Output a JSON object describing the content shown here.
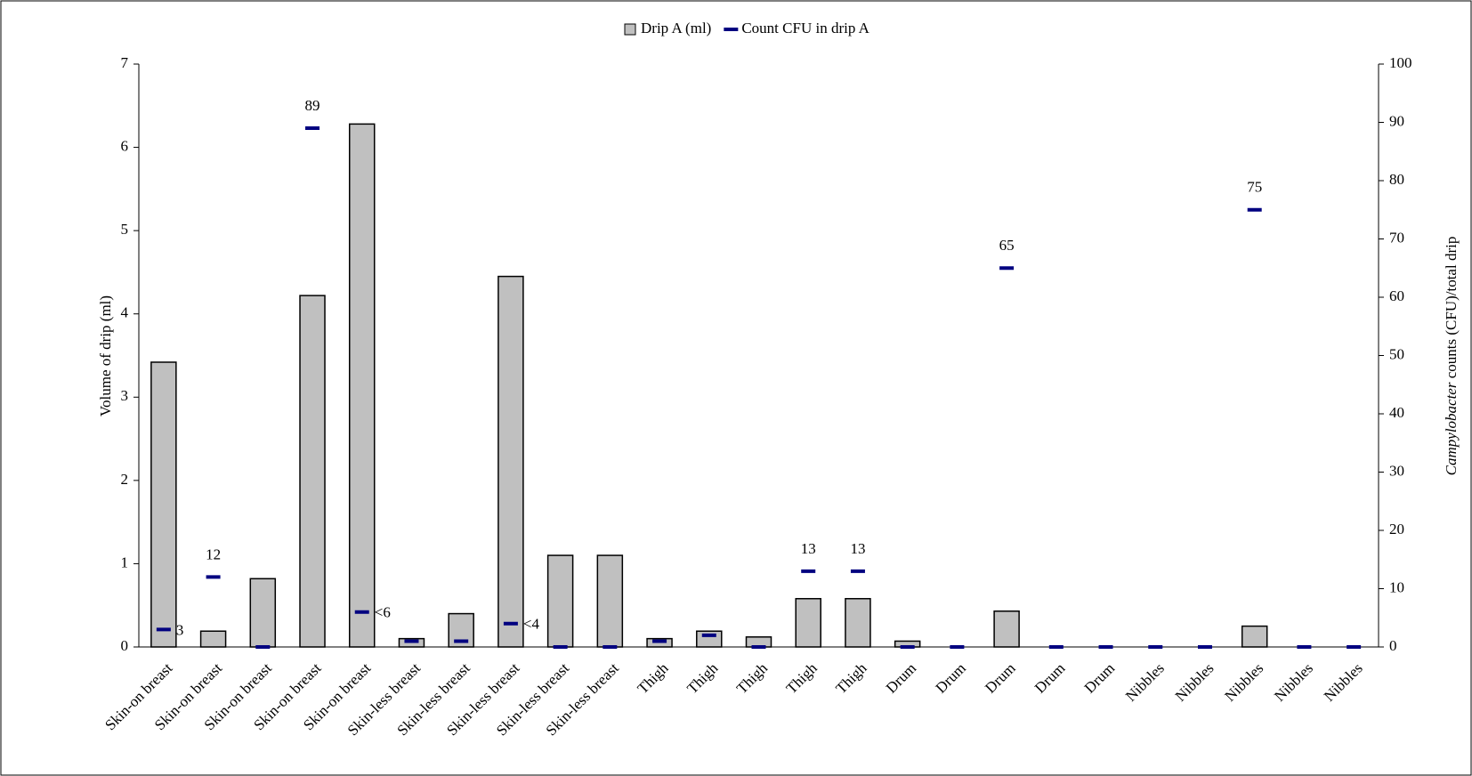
{
  "chart_data": {
    "type": "bar",
    "categories": [
      "Skin-on breast",
      "Skin-on breast",
      "Skin-on breast",
      "Skin-on breast",
      "Skin-on breast",
      "Skin-less breast",
      "Skin-less breast",
      "Skin-less breast",
      "Skin-less breast",
      "Skin-less breast",
      "Thigh",
      "Thigh",
      "Thigh",
      "Thigh",
      "Thigh",
      "Drum",
      "Drum",
      "Drum",
      "Drum",
      "Drum",
      "Nibbles",
      "Nibbles",
      "Nibbles",
      "Nibbles",
      "Nibbles"
    ],
    "series": [
      {
        "name": "Drip A (ml)",
        "color": "#c0c0c0",
        "values": [
          3.42,
          0.19,
          0.82,
          4.22,
          6.28,
          0.1,
          0.4,
          4.45,
          1.1,
          1.1,
          0.1,
          0.19,
          0.12,
          0.58,
          0.58,
          0.07,
          0,
          0.43,
          0,
          0,
          0,
          0,
          0.25,
          0,
          0
        ]
      },
      {
        "name": "Count CFU in drip A",
        "color": "#000080",
        "axis": "y2",
        "values": [
          3,
          12,
          0,
          89,
          6,
          1,
          1,
          4,
          0,
          0,
          1,
          2,
          0,
          13,
          13,
          0,
          0,
          65,
          0,
          0,
          0,
          0,
          75,
          0,
          0
        ],
        "value_labels": [
          "3",
          "12",
          null,
          "89",
          "<6",
          null,
          null,
          "<4",
          null,
          null,
          null,
          null,
          null,
          "13",
          "13",
          null,
          null,
          "65",
          null,
          null,
          null,
          null,
          "75",
          null,
          null
        ]
      }
    ],
    "ylabel": "Volume of drip (ml)",
    "y2label": [
      "Campylobacter",
      " counts (CFU)/total drip"
    ],
    "ylim": [
      0,
      7
    ],
    "yticks": [
      0,
      1,
      2,
      3,
      4,
      5,
      6,
      7
    ],
    "y2lim": [
      0,
      100
    ],
    "y2ticks": [
      0,
      10,
      20,
      30,
      40,
      50,
      60,
      70,
      80,
      90,
      100
    ],
    "legend": "top"
  }
}
